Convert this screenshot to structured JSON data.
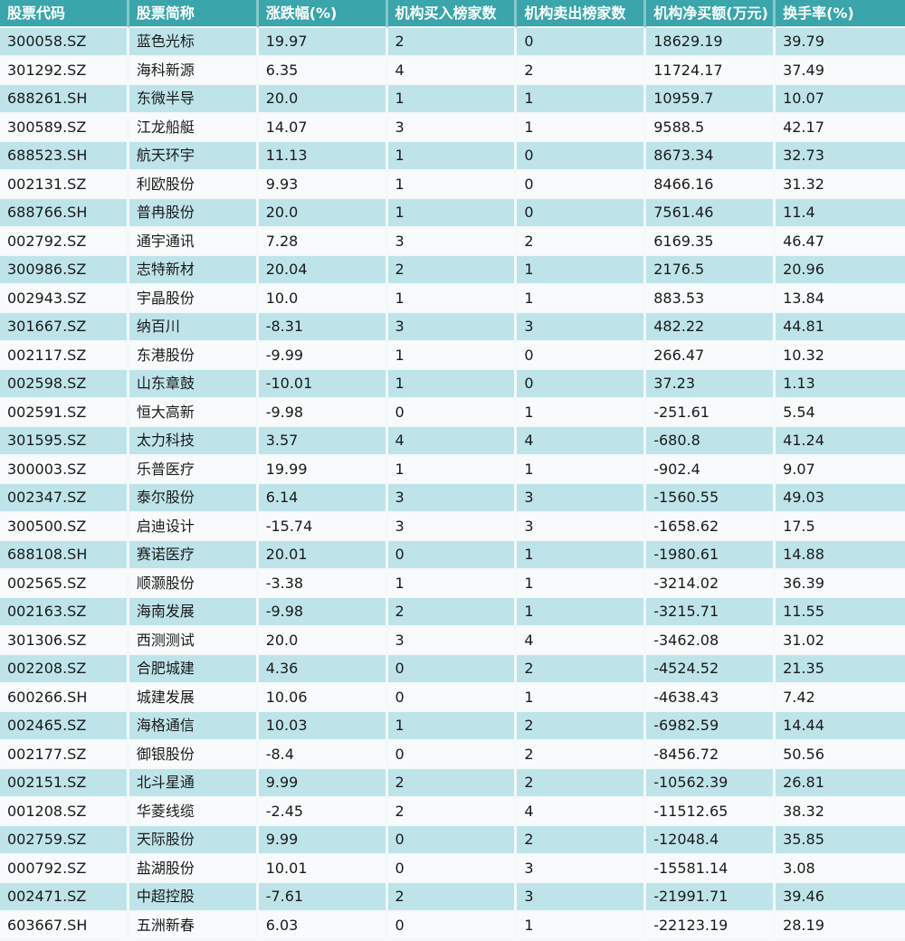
{
  "colors": {
    "header_bg": "#3aa5aa",
    "header_text": "#ffffff",
    "row_alt_bg": "#bee4ea",
    "row_bg": "#f8fafb",
    "cell_text": "#1a1a1a",
    "grid_line": "#f3f9fa"
  },
  "chart_data": {
    "type": "table",
    "title": "",
    "columns": [
      "股票代码",
      "股票简称",
      "涨跌幅(%)",
      "机构买入榜家数",
      "机构卖出榜家数",
      "机构净买额(万元)",
      "换手率(%)"
    ],
    "rows": [
      [
        "300058.SZ",
        "蓝色光标",
        "19.97",
        "2",
        "0",
        "18629.19",
        "39.79"
      ],
      [
        "301292.SZ",
        "海科新源",
        "6.35",
        "4",
        "2",
        "11724.17",
        "37.49"
      ],
      [
        "688261.SH",
        "东微半导",
        "20.0",
        "1",
        "1",
        "10959.7",
        "10.07"
      ],
      [
        "300589.SZ",
        "江龙船艇",
        "14.07",
        "3",
        "1",
        "9588.5",
        "42.17"
      ],
      [
        "688523.SH",
        "航天环宇",
        "11.13",
        "1",
        "0",
        "8673.34",
        "32.73"
      ],
      [
        "002131.SZ",
        "利欧股份",
        "9.93",
        "1",
        "0",
        "8466.16",
        "31.32"
      ],
      [
        "688766.SH",
        "普冉股份",
        "20.0",
        "1",
        "0",
        "7561.46",
        "11.4"
      ],
      [
        "002792.SZ",
        "通宇通讯",
        "7.28",
        "3",
        "2",
        "6169.35",
        "46.47"
      ],
      [
        "300986.SZ",
        "志特新材",
        "20.04",
        "2",
        "1",
        "2176.5",
        "20.96"
      ],
      [
        "002943.SZ",
        "宇晶股份",
        "10.0",
        "1",
        "1",
        "883.53",
        "13.84"
      ],
      [
        "301667.SZ",
        "纳百川",
        "-8.31",
        "3",
        "3",
        "482.22",
        "44.81"
      ],
      [
        "002117.SZ",
        "东港股份",
        "-9.99",
        "1",
        "0",
        "266.47",
        "10.32"
      ],
      [
        "002598.SZ",
        "山东章鼓",
        "-10.01",
        "1",
        "0",
        "37.23",
        "1.13"
      ],
      [
        "002591.SZ",
        "恒大高新",
        "-9.98",
        "0",
        "1",
        "-251.61",
        "5.54"
      ],
      [
        "301595.SZ",
        "太力科技",
        "3.57",
        "4",
        "4",
        "-680.8",
        "41.24"
      ],
      [
        "300003.SZ",
        "乐普医疗",
        "19.99",
        "1",
        "1",
        "-902.4",
        "9.07"
      ],
      [
        "002347.SZ",
        "泰尔股份",
        "6.14",
        "3",
        "3",
        "-1560.55",
        "49.03"
      ],
      [
        "300500.SZ",
        "启迪设计",
        "-15.74",
        "3",
        "3",
        "-1658.62",
        "17.5"
      ],
      [
        "688108.SH",
        "赛诺医疗",
        "20.01",
        "0",
        "1",
        "-1980.61",
        "14.88"
      ],
      [
        "002565.SZ",
        "顺灏股份",
        "-3.38",
        "1",
        "1",
        "-3214.02",
        "36.39"
      ],
      [
        "002163.SZ",
        "海南发展",
        "-9.98",
        "2",
        "1",
        "-3215.71",
        "11.55"
      ],
      [
        "301306.SZ",
        "西测测试",
        "20.0",
        "3",
        "4",
        "-3462.08",
        "31.02"
      ],
      [
        "002208.SZ",
        "合肥城建",
        "4.36",
        "0",
        "2",
        "-4524.52",
        "21.35"
      ],
      [
        "600266.SH",
        "城建发展",
        "10.06",
        "0",
        "1",
        "-4638.43",
        "7.42"
      ],
      [
        "002465.SZ",
        "海格通信",
        "10.03",
        "1",
        "2",
        "-6982.59",
        "14.44"
      ],
      [
        "002177.SZ",
        "御银股份",
        "-8.4",
        "0",
        "2",
        "-8456.72",
        "50.56"
      ],
      [
        "002151.SZ",
        "北斗星通",
        "9.99",
        "2",
        "2",
        "-10562.39",
        "26.81"
      ],
      [
        "001208.SZ",
        "华菱线缆",
        "-2.45",
        "2",
        "4",
        "-11512.65",
        "38.32"
      ],
      [
        "002759.SZ",
        "天际股份",
        "9.99",
        "0",
        "2",
        "-12048.4",
        "35.85"
      ],
      [
        "000792.SZ",
        "盐湖股份",
        "10.01",
        "0",
        "3",
        "-15581.14",
        "3.08"
      ],
      [
        "002471.SZ",
        "中超控股",
        "-7.61",
        "2",
        "3",
        "-21991.71",
        "39.46"
      ],
      [
        "603667.SH",
        "五洲新春",
        "6.03",
        "0",
        "1",
        "-22123.19",
        "28.19"
      ]
    ]
  }
}
